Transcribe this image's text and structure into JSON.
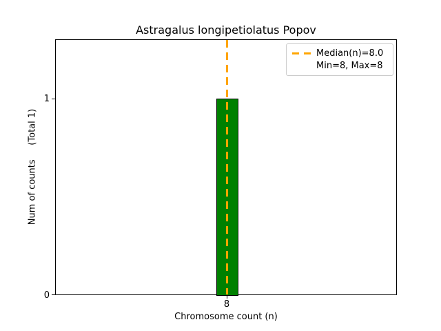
{
  "chart_data": {
    "type": "bar",
    "title": "Astragalus longipetiolatus Popov",
    "xlabel": "Chromosome count (n)",
    "ylabel": "Num of counts     (Total 1)",
    "categories": [
      8
    ],
    "values": [
      1
    ],
    "total_counts": 1,
    "median_n": 8.0,
    "min_n": 8,
    "max_n": 8,
    "x_tick_labels": [
      "8"
    ],
    "y_tick_labels": [
      "0",
      "1"
    ],
    "ylim": [
      0,
      1.3
    ],
    "grid": false,
    "bar_color": "#008000",
    "bar_edge_color": "#000000",
    "median_line_color": "#FFA500",
    "median_line_style": "dashed",
    "legend_position": "upper right",
    "legend": [
      {
        "label": "Median(n)=8.0",
        "handle": "dashed-orange"
      },
      {
        "label": "Min=8, Max=8",
        "handle": "none"
      }
    ]
  }
}
